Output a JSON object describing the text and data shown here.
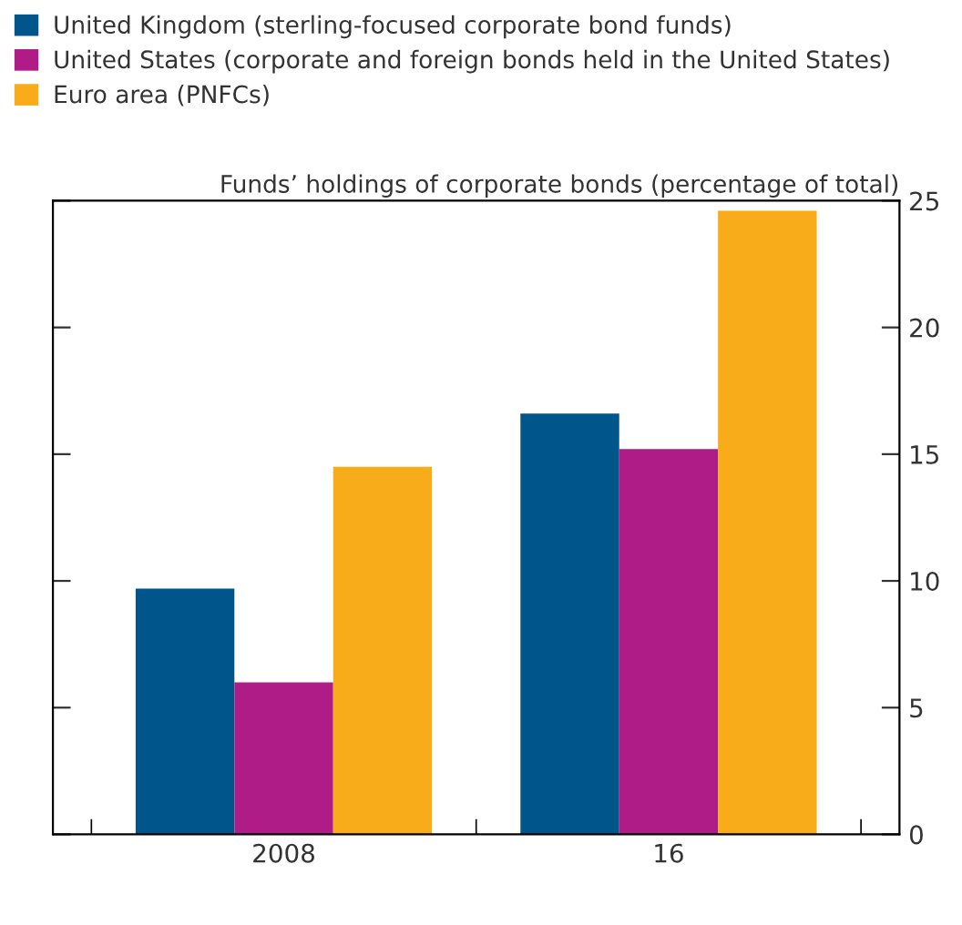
{
  "chart_data": {
    "type": "bar",
    "ylabel": "Funds’ holdings of corporate bonds (percentage of total)",
    "categories": [
      "2008",
      "16"
    ],
    "series": [
      {
        "name": "United Kingdom (sterling-focused corporate bond funds)",
        "color": "#00558b",
        "values": [
          9.7,
          16.6
        ]
      },
      {
        "name": "United States (corporate and foreign bonds held in the United States)",
        "color": "#b01c87",
        "values": [
          6.0,
          15.2
        ]
      },
      {
        "name": "Euro area (PNFCs)",
        "color": "#f8ac19",
        "values": [
          14.5,
          24.6
        ]
      }
    ],
    "ylim": [
      0,
      25
    ],
    "yticks": [
      0,
      5,
      10,
      15,
      20,
      25
    ],
    "grid": false,
    "legend": "top left"
  }
}
